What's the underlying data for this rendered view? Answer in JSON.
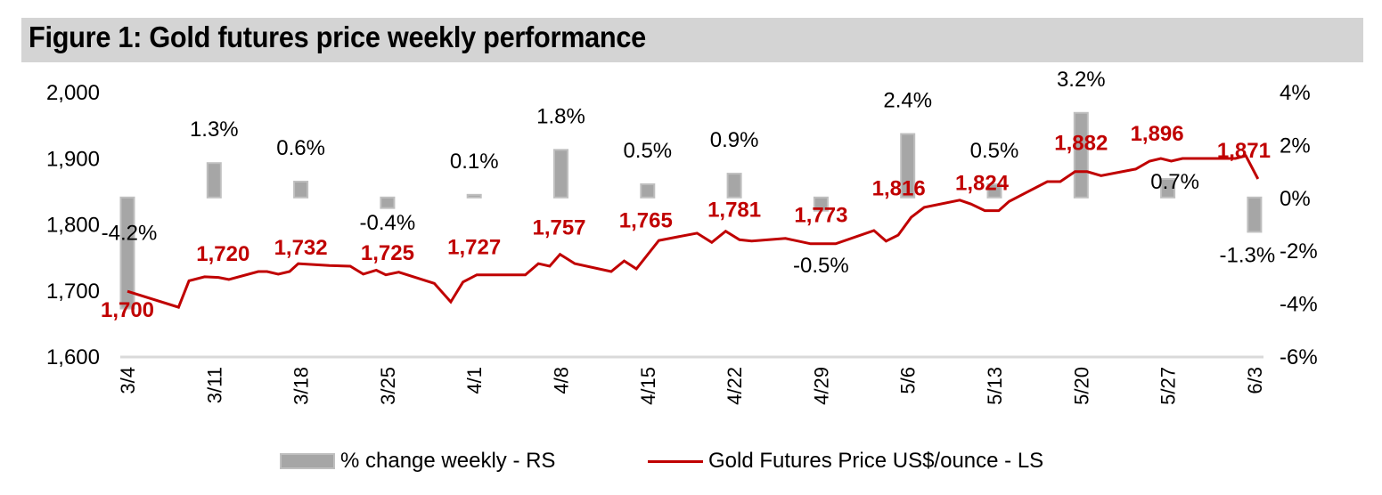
{
  "figure": {
    "title": "Figure 1: Gold futures price weekly performance"
  },
  "colors": {
    "title_bg": "#d4d4d4",
    "bar": "#a6a6a6",
    "bar_border": "#bfbfbf",
    "line": "#c00000",
    "axis": "#d9d9d9",
    "text": "#000000"
  },
  "chart_data": {
    "type": "bar+line",
    "title": "Figure 1: Gold futures price weekly performance",
    "xlabel": "",
    "categories": [
      "3/4",
      "3/11",
      "3/18",
      "3/25",
      "4/1",
      "4/8",
      "4/15",
      "4/22",
      "4/29",
      "5/6",
      "5/13",
      "5/20",
      "5/27",
      "6/3"
    ],
    "left_axis": {
      "label": "Gold Futures Price US$/ounce",
      "ylim": [
        1600,
        2000
      ],
      "ticks": [
        1600,
        1700,
        1800,
        1900,
        2000
      ],
      "tick_labels": [
        "1,600",
        "1,700",
        "1,800",
        "1,900",
        "2,000"
      ]
    },
    "right_axis": {
      "label": "% change weekly",
      "ylim": [
        -6,
        4
      ],
      "ticks": [
        -6,
        -4,
        -2,
        0,
        2,
        4
      ],
      "tick_labels": [
        "-6%",
        "-4%",
        "-2%",
        "0%",
        "2%",
        "4%"
      ]
    },
    "grid": false,
    "legend_position": "bottom",
    "series": [
      {
        "name": "% change weekly - RS",
        "type": "bar",
        "axis": "right",
        "values": [
          -4.2,
          1.3,
          0.6,
          -0.4,
          0.1,
          1.8,
          0.5,
          0.9,
          -0.5,
          2.4,
          0.5,
          3.2,
          0.7,
          -1.3
        ],
        "labels": [
          "-4.2%",
          "1.3%",
          "0.6%",
          "-0.4%",
          "0.1%",
          "1.8%",
          "0.5%",
          "0.9%",
          "-0.5%",
          "2.4%",
          "0.5%",
          "3.2%",
          "0.7%",
          "-1.3%"
        ]
      },
      {
        "name": "Gold Futures Price US$/ounce - LS",
        "type": "line",
        "axis": "left",
        "weekly_labels": [
          "1,700",
          "1,720",
          "1,732",
          "1,725",
          "1,727",
          "1,757",
          "1,765",
          "1,781",
          "1,773",
          "1,816",
          "1,824",
          "1,882",
          "1,896",
          "1,871"
        ],
        "weekly_values": [
          1700,
          1720,
          1732,
          1725,
          1727,
          1757,
          1765,
          1781,
          1773,
          1816,
          1824,
          1882,
          1896,
          1871
        ],
        "points": [
          [
            0.0,
            1698
          ],
          [
            0.59,
            1674
          ],
          [
            0.71,
            1714
          ],
          [
            0.89,
            1720
          ],
          [
            1.05,
            1719
          ],
          [
            1.17,
            1716
          ],
          [
            1.51,
            1728
          ],
          [
            1.61,
            1728
          ],
          [
            1.74,
            1724
          ],
          [
            1.87,
            1728
          ],
          [
            1.97,
            1740
          ],
          [
            2.33,
            1737
          ],
          [
            2.57,
            1736
          ],
          [
            2.72,
            1724
          ],
          [
            2.87,
            1730
          ],
          [
            2.98,
            1723
          ],
          [
            3.13,
            1727
          ],
          [
            3.54,
            1710
          ],
          [
            3.73,
            1682
          ],
          [
            3.87,
            1712
          ],
          [
            4.03,
            1723
          ],
          [
            4.59,
            1723
          ],
          [
            4.74,
            1740
          ],
          [
            4.87,
            1736
          ],
          [
            4.99,
            1754
          ],
          [
            5.16,
            1740
          ],
          [
            5.58,
            1728
          ],
          [
            5.73,
            1744
          ],
          [
            5.87,
            1732
          ],
          [
            6.13,
            1775
          ],
          [
            6.57,
            1786
          ],
          [
            6.74,
            1772
          ],
          [
            6.9,
            1789
          ],
          [
            7.06,
            1776
          ],
          [
            7.2,
            1774
          ],
          [
            7.59,
            1778
          ],
          [
            7.88,
            1770
          ],
          [
            8.17,
            1770
          ],
          [
            8.61,
            1790
          ],
          [
            8.75,
            1774
          ],
          [
            8.89,
            1783
          ],
          [
            9.04,
            1810
          ],
          [
            9.19,
            1825
          ],
          [
            9.6,
            1836
          ],
          [
            9.73,
            1830
          ],
          [
            9.89,
            1820
          ],
          [
            10.05,
            1820
          ],
          [
            10.17,
            1834
          ],
          [
            10.61,
            1864
          ],
          [
            10.76,
            1864
          ],
          [
            10.93,
            1879
          ],
          [
            11.07,
            1879
          ],
          [
            11.23,
            1873
          ],
          [
            11.63,
            1883
          ],
          [
            11.79,
            1895
          ],
          [
            11.92,
            1899
          ],
          [
            12.04,
            1895
          ],
          [
            12.17,
            1899
          ],
          [
            12.78,
            1899
          ],
          [
            12.9,
            1903
          ],
          [
            13.04,
            1868
          ]
        ]
      }
    ]
  },
  "legend": {
    "items": [
      {
        "label": "% change weekly - RS",
        "swatch": "bar"
      },
      {
        "label": "Gold Futures Price US$/ounce - LS",
        "swatch": "line"
      }
    ]
  }
}
